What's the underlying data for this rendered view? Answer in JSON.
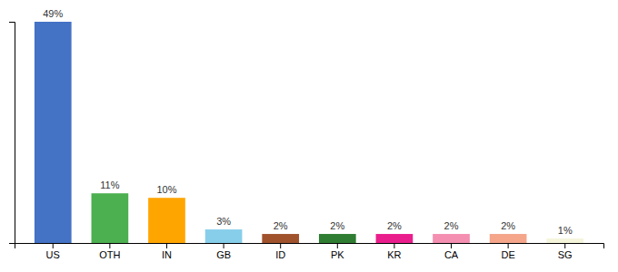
{
  "chart_data": {
    "type": "bar",
    "categories": [
      "US",
      "OTH",
      "IN",
      "GB",
      "ID",
      "PK",
      "KR",
      "CA",
      "DE",
      "SG"
    ],
    "values": [
      49,
      11,
      10,
      3,
      2,
      2,
      2,
      2,
      2,
      1
    ],
    "value_labels": [
      "49%",
      "11%",
      "10%",
      "3%",
      "2%",
      "2%",
      "2%",
      "2%",
      "2%",
      "1%"
    ],
    "colors": [
      "#4472c4",
      "#4caf50",
      "#ffa500",
      "#87ceeb",
      "#a0522d",
      "#2e7d32",
      "#e91e8c",
      "#f48fb1",
      "#f4a58a",
      "#f5f5dc"
    ],
    "ylim": [
      0,
      49
    ],
    "data_labels": true,
    "tick_labels": "x",
    "grid": false
  }
}
